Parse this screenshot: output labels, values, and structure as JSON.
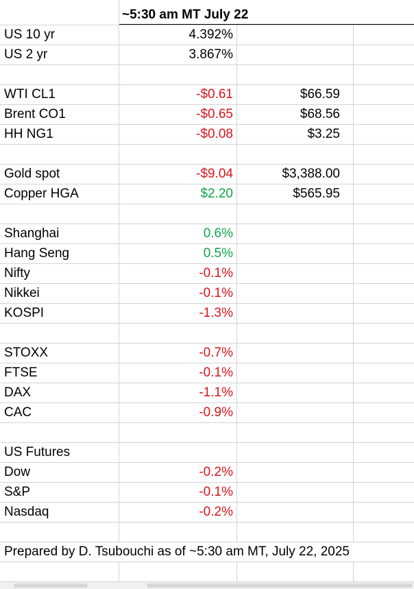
{
  "header": {
    "title": "~5:30 am MT July 22"
  },
  "rows": [
    {
      "label": "US 10 yr",
      "change": "4.392%",
      "price": ""
    },
    {
      "label": "US 2 yr",
      "change": "3.867%",
      "price": ""
    },
    {
      "label": "",
      "change": "",
      "price": ""
    },
    {
      "label": "WTI  CL1",
      "change": "-$0.61",
      "price": "$66.59"
    },
    {
      "label": "Brent  CO1",
      "change": "-$0.65",
      "price": "$68.56"
    },
    {
      "label": "HH  NG1",
      "change": "-$0.08",
      "price": "$3.25"
    },
    {
      "label": "",
      "change": "",
      "price": ""
    },
    {
      "label": "Gold spot",
      "change": "-$9.04",
      "price": "$3,388.00"
    },
    {
      "label": "Copper HGA",
      "change": "$2.20",
      "price": "$565.95"
    },
    {
      "label": "",
      "change": "",
      "price": ""
    },
    {
      "label": "Shanghai",
      "change": "0.6%",
      "price": ""
    },
    {
      "label": "Hang Seng",
      "change": "0.5%",
      "price": ""
    },
    {
      "label": "Nifty",
      "change": "-0.1%",
      "price": ""
    },
    {
      "label": "Nikkei",
      "change": "-0.1%",
      "price": ""
    },
    {
      "label": "KOSPI",
      "change": "-1.3%",
      "price": ""
    },
    {
      "label": "",
      "change": "",
      "price": ""
    },
    {
      "label": "STOXX",
      "change": "-0.7%",
      "price": ""
    },
    {
      "label": "FTSE",
      "change": "-0.1%",
      "price": ""
    },
    {
      "label": "DAX",
      "change": "-1.1%",
      "price": ""
    },
    {
      "label": "CAC",
      "change": "-0.9%",
      "price": ""
    },
    {
      "label": "",
      "change": "",
      "price": ""
    },
    {
      "label": "US Futures",
      "change": "",
      "price": ""
    },
    {
      "label": "Dow",
      "change": "-0.2%",
      "price": ""
    },
    {
      "label": "S&P",
      "change": "-0.1%",
      "price": ""
    },
    {
      "label": "Nasdaq",
      "change": "-0.2%",
      "price": ""
    },
    {
      "label": "",
      "change": "",
      "price": ""
    }
  ],
  "footer": {
    "note": "Prepared by D. Tsubouchi as of ~5:30 am MT, July 22, 2025"
  },
  "colors": {
    "negative": "#d9141b",
    "positive": "#11a34a",
    "gridline": "#d4d4d4"
  }
}
